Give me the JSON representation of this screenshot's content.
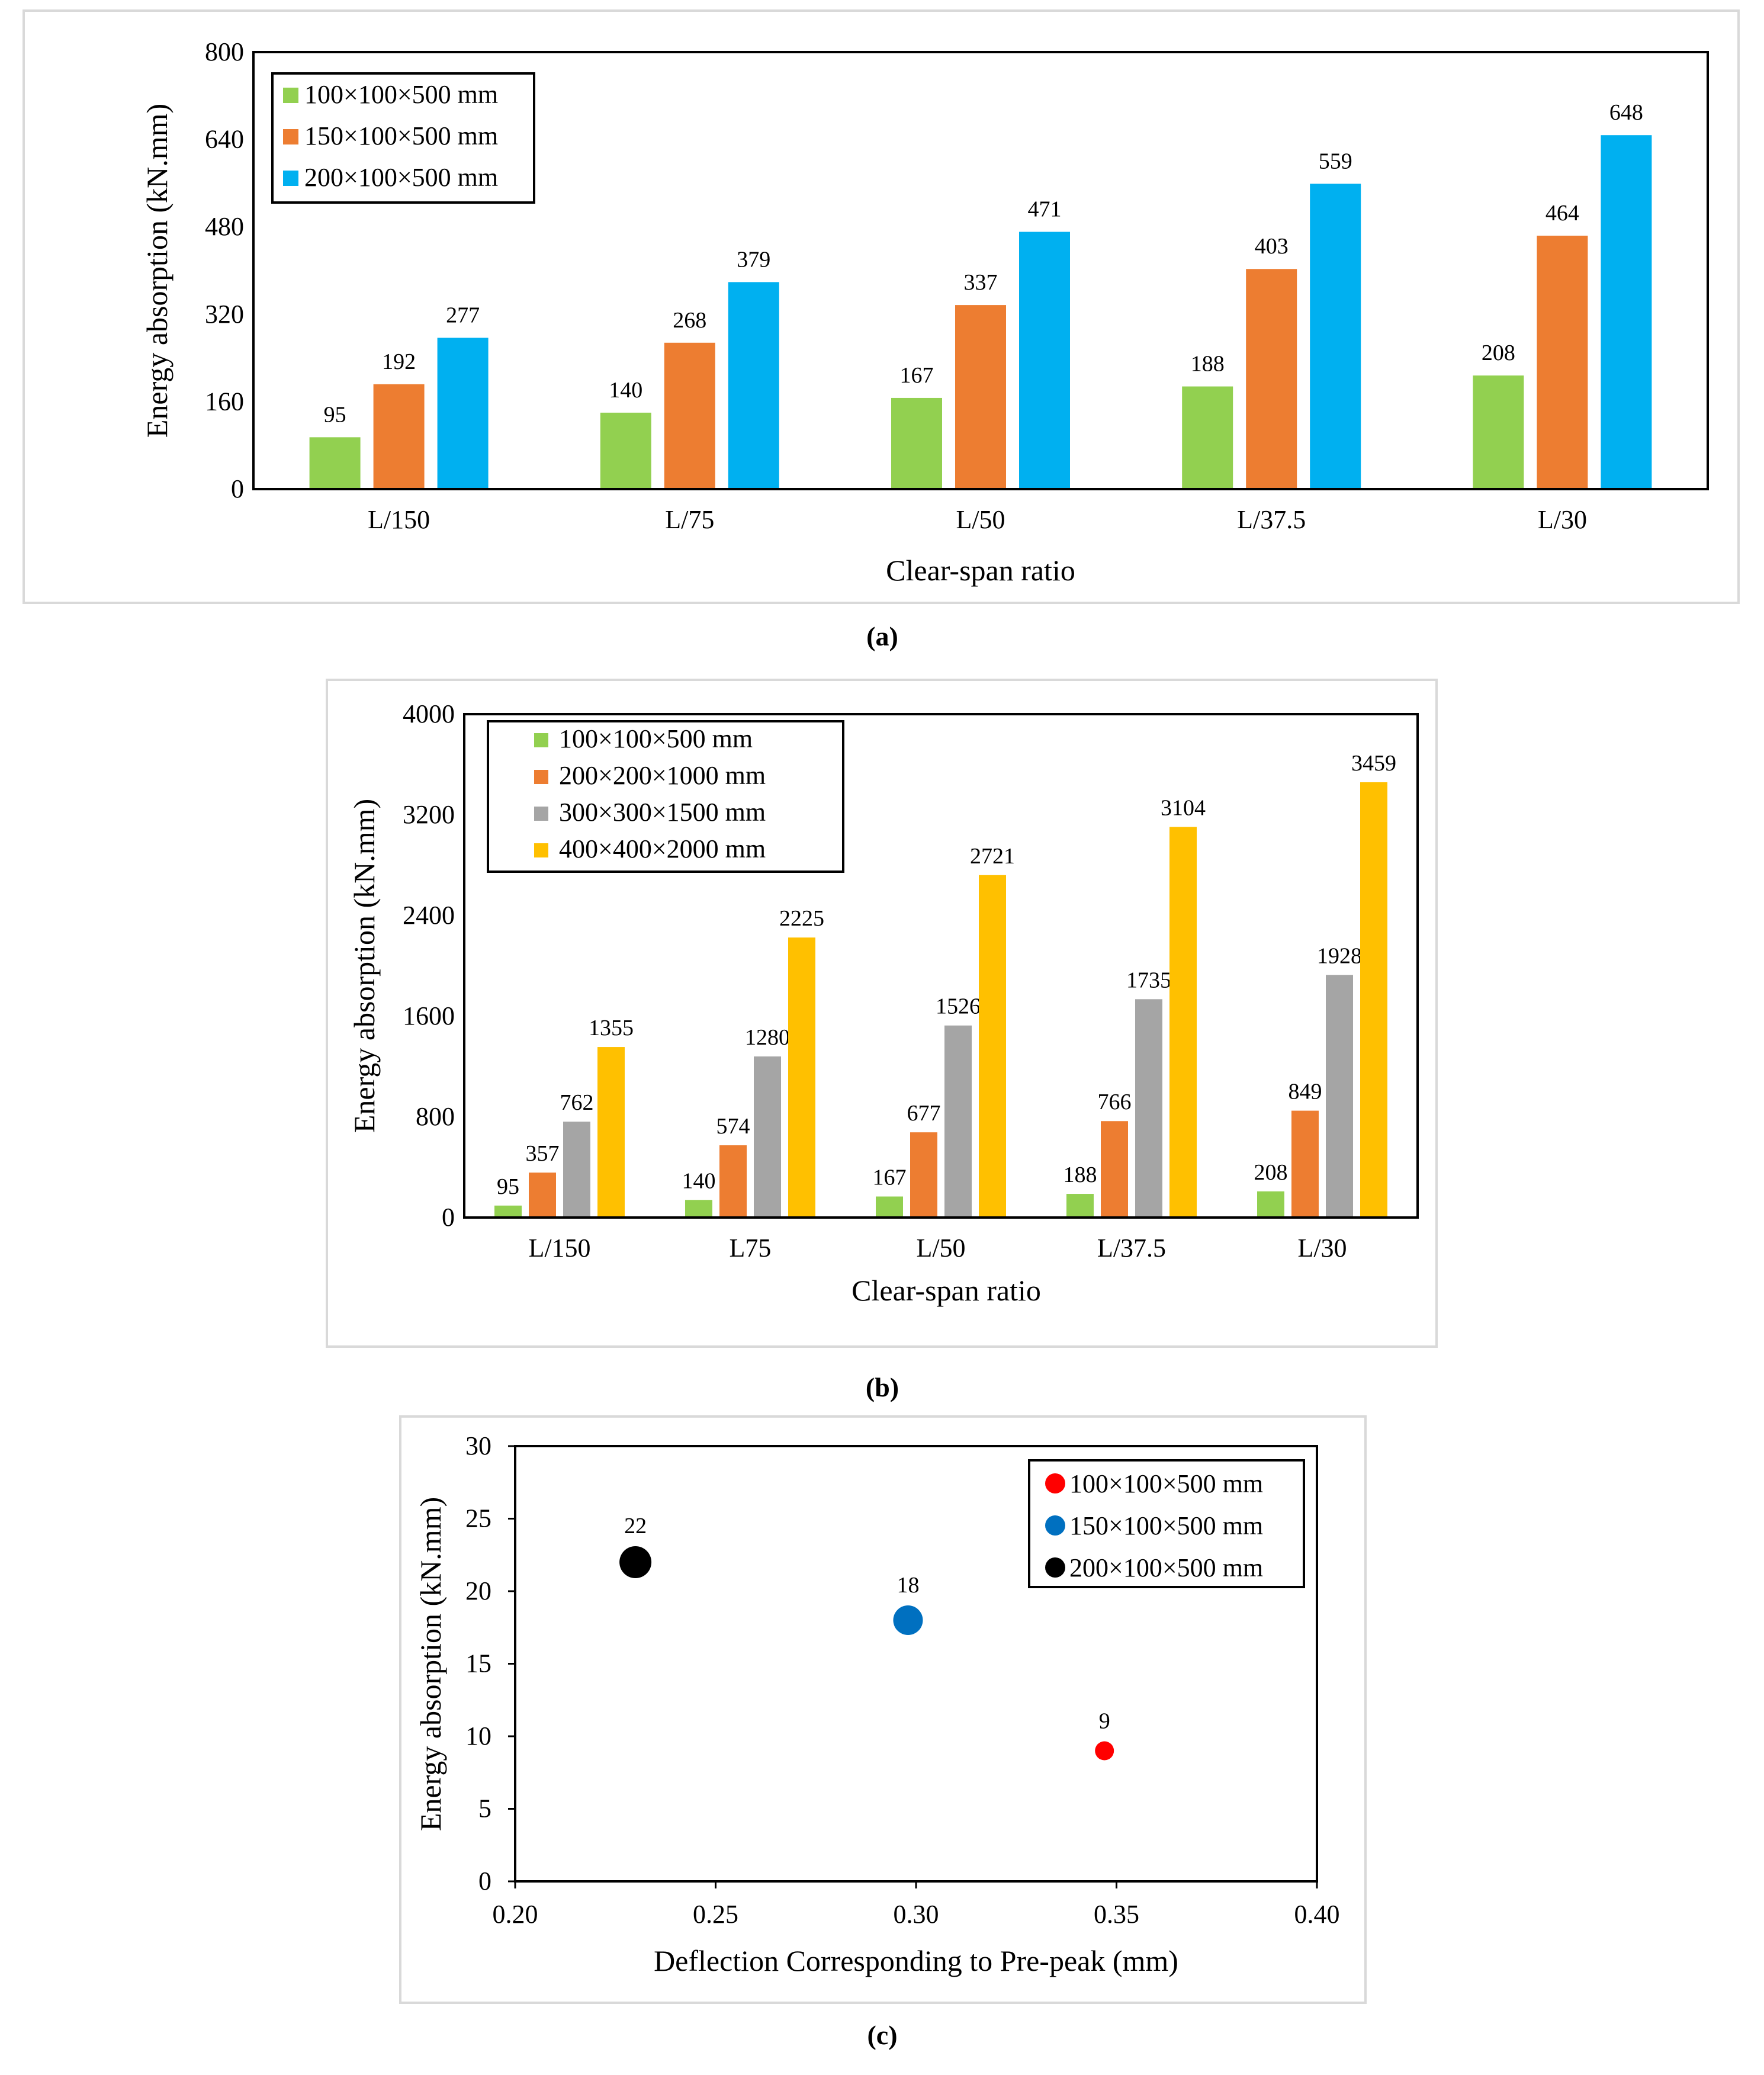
{
  "chart_data": [
    {
      "type": "bar",
      "caption": "(a)",
      "xlabel": "Clear-span ratio",
      "ylabel": "Energy absorption (kN.mm)",
      "ylim": [
        0,
        800
      ],
      "yticks": [
        "0",
        "160",
        "320",
        "480",
        "640",
        "800"
      ],
      "categories": [
        "L/150",
        "L/75",
        "L/50",
        "L/37.5",
        "L/30"
      ],
      "legend_position": "top-left",
      "series": [
        {
          "name": "100×100×500 mm",
          "color": "#92d050",
          "values": [
            95,
            140,
            167,
            188,
            208
          ]
        },
        {
          "name": "150×100×500 mm",
          "color": "#ed7d31",
          "values": [
            192,
            268,
            337,
            403,
            464
          ]
        },
        {
          "name": "200×100×500 mm",
          "color": "#00b0f0",
          "values": [
            277,
            379,
            471,
            559,
            648
          ]
        }
      ]
    },
    {
      "type": "bar",
      "caption": "(b)",
      "xlabel": "Clear-span ratio",
      "ylabel": "Energy absorption (kN.mm)",
      "ylim": [
        0,
        4000
      ],
      "yticks": [
        "0",
        "800",
        "1600",
        "2400",
        "3200",
        "4000"
      ],
      "categories": [
        "L/150",
        "L75",
        "L/50",
        "L/37.5",
        "L/30"
      ],
      "legend_position": "top-left",
      "series": [
        {
          "name": "100×100×500 mm",
          "color": "#92d050",
          "values": [
            95,
            140,
            167,
            188,
            208
          ]
        },
        {
          "name": "200×200×1000 mm",
          "color": "#ed7d31",
          "values": [
            357,
            574,
            677,
            766,
            849
          ]
        },
        {
          "name": "300×300×1500 mm",
          "color": "#a5a5a5",
          "values": [
            762,
            1280,
            1526,
            1735,
            1928
          ]
        },
        {
          "name": "400×400×2000 mm",
          "color": "#ffc000",
          "values": [
            1355,
            2225,
            2721,
            3104,
            3459
          ]
        }
      ]
    },
    {
      "type": "scatter",
      "caption": "(c)",
      "xlabel": "Deflection Corresponding to Pre-peak (mm)",
      "ylabel": "Energy absorption (kN.mm)",
      "xlim": [
        0.2,
        0.4
      ],
      "ylim": [
        0,
        30
      ],
      "xticks": [
        "0.20",
        "0.25",
        "0.30",
        "0.35",
        "0.40"
      ],
      "yticks": [
        "0",
        "5",
        "10",
        "15",
        "20",
        "25",
        "30"
      ],
      "legend_position": "top-right",
      "series": [
        {
          "name": "100×100×500 mm",
          "color": "#ff0000",
          "x": 0.347,
          "y": 9,
          "label": "9"
        },
        {
          "name": "150×100×500 mm",
          "color": "#0070c0",
          "x": 0.298,
          "y": 18,
          "label": "18"
        },
        {
          "name": "200×100×500 mm",
          "color": "#000000",
          "x": 0.23,
          "y": 22,
          "label": "22"
        }
      ]
    }
  ]
}
